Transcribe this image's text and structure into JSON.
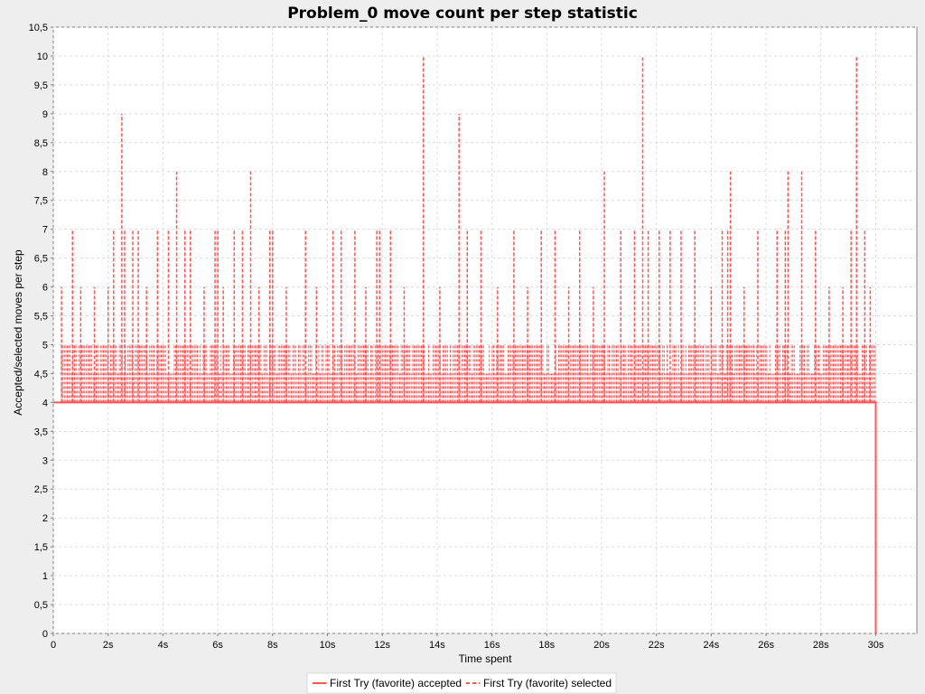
{
  "chart_data": {
    "type": "line",
    "title": "Problem_0 move count per step statistic",
    "xlabel": "Time spent",
    "ylabel": "Accepted/selected moves per step",
    "xlim": [
      0,
      31.5
    ],
    "ylim": [
      0,
      10.5
    ],
    "x_ticks": [
      "0",
      "2s",
      "4s",
      "6s",
      "8s",
      "10s",
      "12s",
      "14s",
      "16s",
      "18s",
      "20s",
      "22s",
      "24s",
      "26s",
      "28s",
      "30s"
    ],
    "x_tick_values": [
      0,
      2,
      4,
      6,
      8,
      10,
      12,
      14,
      16,
      18,
      20,
      22,
      24,
      26,
      28,
      30
    ],
    "y_ticks": [
      "0",
      "0,5",
      "1",
      "1,5",
      "2",
      "2,5",
      "3",
      "3,5",
      "4",
      "4,5",
      "5",
      "5,5",
      "6",
      "6,5",
      "7",
      "7,5",
      "8",
      "8,5",
      "9",
      "9,5",
      "10",
      "10,5"
    ],
    "y_tick_values": [
      0,
      0.5,
      1,
      1.5,
      2,
      2.5,
      3,
      3.5,
      4,
      4.5,
      5,
      5.5,
      6,
      6.5,
      7,
      7.5,
      8,
      8.5,
      9,
      9.5,
      10,
      10.5
    ],
    "grid": true,
    "legend_position": "bottom",
    "series": [
      {
        "name": "First Try (favorite) accepted",
        "style": "solid",
        "color": "#ff5555",
        "x": [
          0,
          30,
          30
        ],
        "y": [
          4,
          4,
          0
        ]
      },
      {
        "name": "First Try (favorite) selected",
        "style": "dashed",
        "color": "#ff5555",
        "base_value": 4,
        "x_range": [
          0.3,
          30
        ],
        "typical_peak": 5,
        "spikes": [
          {
            "x": 0.3,
            "y": 6
          },
          {
            "x": 0.7,
            "y": 7
          },
          {
            "x": 1.0,
            "y": 6
          },
          {
            "x": 1.5,
            "y": 6
          },
          {
            "x": 2.0,
            "y": 6
          },
          {
            "x": 2.2,
            "y": 7
          },
          {
            "x": 2.5,
            "y": 9
          },
          {
            "x": 2.6,
            "y": 7
          },
          {
            "x": 2.9,
            "y": 7
          },
          {
            "x": 3.1,
            "y": 7
          },
          {
            "x": 3.4,
            "y": 6
          },
          {
            "x": 3.8,
            "y": 7
          },
          {
            "x": 4.2,
            "y": 7
          },
          {
            "x": 4.5,
            "y": 8
          },
          {
            "x": 4.8,
            "y": 7
          },
          {
            "x": 5.0,
            "y": 7
          },
          {
            "x": 5.5,
            "y": 6
          },
          {
            "x": 5.9,
            "y": 7
          },
          {
            "x": 6.0,
            "y": 7
          },
          {
            "x": 6.2,
            "y": 6
          },
          {
            "x": 6.6,
            "y": 7
          },
          {
            "x": 6.9,
            "y": 7
          },
          {
            "x": 7.2,
            "y": 8
          },
          {
            "x": 7.5,
            "y": 6
          },
          {
            "x": 7.9,
            "y": 7
          },
          {
            "x": 8.0,
            "y": 7
          },
          {
            "x": 8.5,
            "y": 6
          },
          {
            "x": 9.2,
            "y": 7
          },
          {
            "x": 9.6,
            "y": 6
          },
          {
            "x": 10.2,
            "y": 7
          },
          {
            "x": 10.5,
            "y": 7
          },
          {
            "x": 11.0,
            "y": 7
          },
          {
            "x": 11.4,
            "y": 6
          },
          {
            "x": 11.8,
            "y": 7
          },
          {
            "x": 11.9,
            "y": 7
          },
          {
            "x": 12.3,
            "y": 7
          },
          {
            "x": 12.8,
            "y": 6
          },
          {
            "x": 13.5,
            "y": 10
          },
          {
            "x": 14.1,
            "y": 6
          },
          {
            "x": 14.8,
            "y": 9
          },
          {
            "x": 15.1,
            "y": 7
          },
          {
            "x": 15.6,
            "y": 7
          },
          {
            "x": 16.2,
            "y": 6
          },
          {
            "x": 16.8,
            "y": 7
          },
          {
            "x": 17.3,
            "y": 6
          },
          {
            "x": 17.8,
            "y": 7
          },
          {
            "x": 18.3,
            "y": 7
          },
          {
            "x": 18.8,
            "y": 6
          },
          {
            "x": 19.2,
            "y": 7
          },
          {
            "x": 19.7,
            "y": 6
          },
          {
            "x": 20.1,
            "y": 8
          },
          {
            "x": 20.7,
            "y": 7
          },
          {
            "x": 21.2,
            "y": 7
          },
          {
            "x": 21.5,
            "y": 10
          },
          {
            "x": 21.7,
            "y": 7
          },
          {
            "x": 22.1,
            "y": 7
          },
          {
            "x": 22.5,
            "y": 7
          },
          {
            "x": 22.9,
            "y": 7
          },
          {
            "x": 23.4,
            "y": 7
          },
          {
            "x": 24.0,
            "y": 6
          },
          {
            "x": 24.4,
            "y": 7
          },
          {
            "x": 24.6,
            "y": 7
          },
          {
            "x": 24.7,
            "y": 8
          },
          {
            "x": 25.2,
            "y": 6
          },
          {
            "x": 25.7,
            "y": 7
          },
          {
            "x": 26.4,
            "y": 7
          },
          {
            "x": 26.7,
            "y": 7
          },
          {
            "x": 26.8,
            "y": 8
          },
          {
            "x": 27.3,
            "y": 8
          },
          {
            "x": 27.8,
            "y": 7
          },
          {
            "x": 28.3,
            "y": 6
          },
          {
            "x": 28.8,
            "y": 6
          },
          {
            "x": 29.1,
            "y": 7
          },
          {
            "x": 29.3,
            "y": 10
          },
          {
            "x": 29.6,
            "y": 7
          },
          {
            "x": 29.8,
            "y": 6
          }
        ]
      }
    ]
  }
}
